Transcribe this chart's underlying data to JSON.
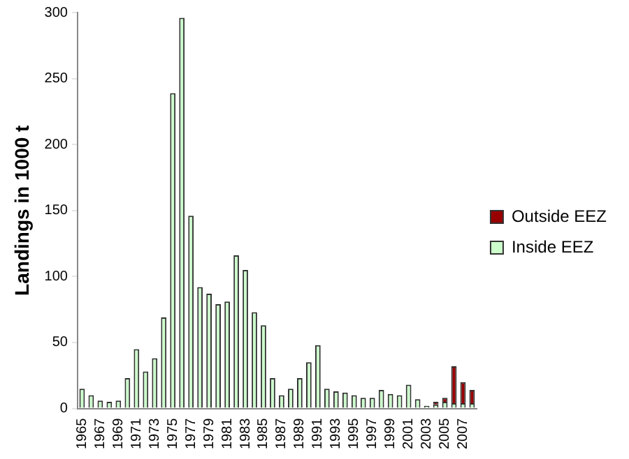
{
  "chart_data": {
    "type": "bar",
    "ylabel": "Landings in 1000 t",
    "stacked": true,
    "legend": "right",
    "grid": false,
    "categories": [
      "1965",
      null,
      "1967",
      null,
      "1969",
      null,
      "1971",
      null,
      "1973",
      null,
      "1975",
      null,
      "1977",
      null,
      "1979",
      null,
      "1981",
      null,
      "1983",
      null,
      "1985",
      null,
      "1987",
      null,
      "1989",
      null,
      "1991",
      null,
      "1993",
      null,
      "1995",
      null,
      "1997",
      null,
      "1999",
      null,
      "2001",
      null,
      "2003",
      null,
      "2005",
      null,
      "2007",
      null
    ],
    "ylim": [
      0,
      300
    ],
    "yticks": [
      0,
      50,
      100,
      150,
      200,
      250,
      300
    ],
    "series": [
      {
        "name": "Inside EEZ",
        "color": "#ccffcc",
        "values": [
          15,
          10,
          6,
          5,
          6,
          23,
          45,
          28,
          38,
          69,
          239,
          296,
          146,
          92,
          87,
          79,
          81,
          116,
          105,
          73,
          63,
          23,
          10,
          15,
          23,
          35,
          48,
          15,
          13,
          12,
          10,
          8,
          8,
          14,
          11,
          10,
          18,
          7,
          2,
          3,
          5,
          4,
          4,
          4
        ]
      },
      {
        "name": "Outside EEZ",
        "color": "#990000",
        "values": [
          0,
          0,
          0,
          0,
          0,
          0,
          0,
          0,
          0,
          0,
          0,
          0,
          0,
          0,
          0,
          0,
          0,
          0,
          0,
          0,
          0,
          0,
          0,
          0,
          0,
          0,
          0,
          0,
          0,
          0,
          0,
          0,
          0,
          0,
          0,
          0,
          0,
          0,
          0,
          2,
          3,
          28,
          16,
          10
        ]
      }
    ]
  }
}
